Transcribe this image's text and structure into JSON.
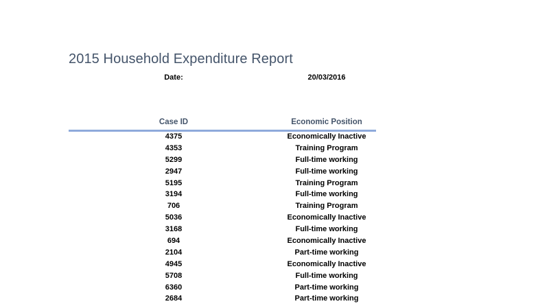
{
  "title": "2015 Household Expenditure Report",
  "date_label": "Date:",
  "date_value": "20/03/2016",
  "table": {
    "headers": [
      "Case ID",
      "Economic Position"
    ],
    "rows": [
      [
        "4375",
        "Economically Inactive"
      ],
      [
        "4353",
        "Training Program"
      ],
      [
        "5299",
        "Full-time working"
      ],
      [
        "2947",
        "Full-time working"
      ],
      [
        "5195",
        "Training Program"
      ],
      [
        "3194",
        "Full-time working"
      ],
      [
        "706",
        "Training Program"
      ],
      [
        "5036",
        "Economically Inactive"
      ],
      [
        "3168",
        "Full-time working"
      ],
      [
        "694",
        "Economically Inactive"
      ],
      [
        "2104",
        "Part-time working"
      ],
      [
        "4945",
        "Economically Inactive"
      ],
      [
        "5708",
        "Full-time working"
      ],
      [
        "6360",
        "Part-time working"
      ],
      [
        "2684",
        "Part-time working"
      ]
    ]
  },
  "colors": {
    "title": "#44546a",
    "header_rule": "#8eaadb"
  }
}
